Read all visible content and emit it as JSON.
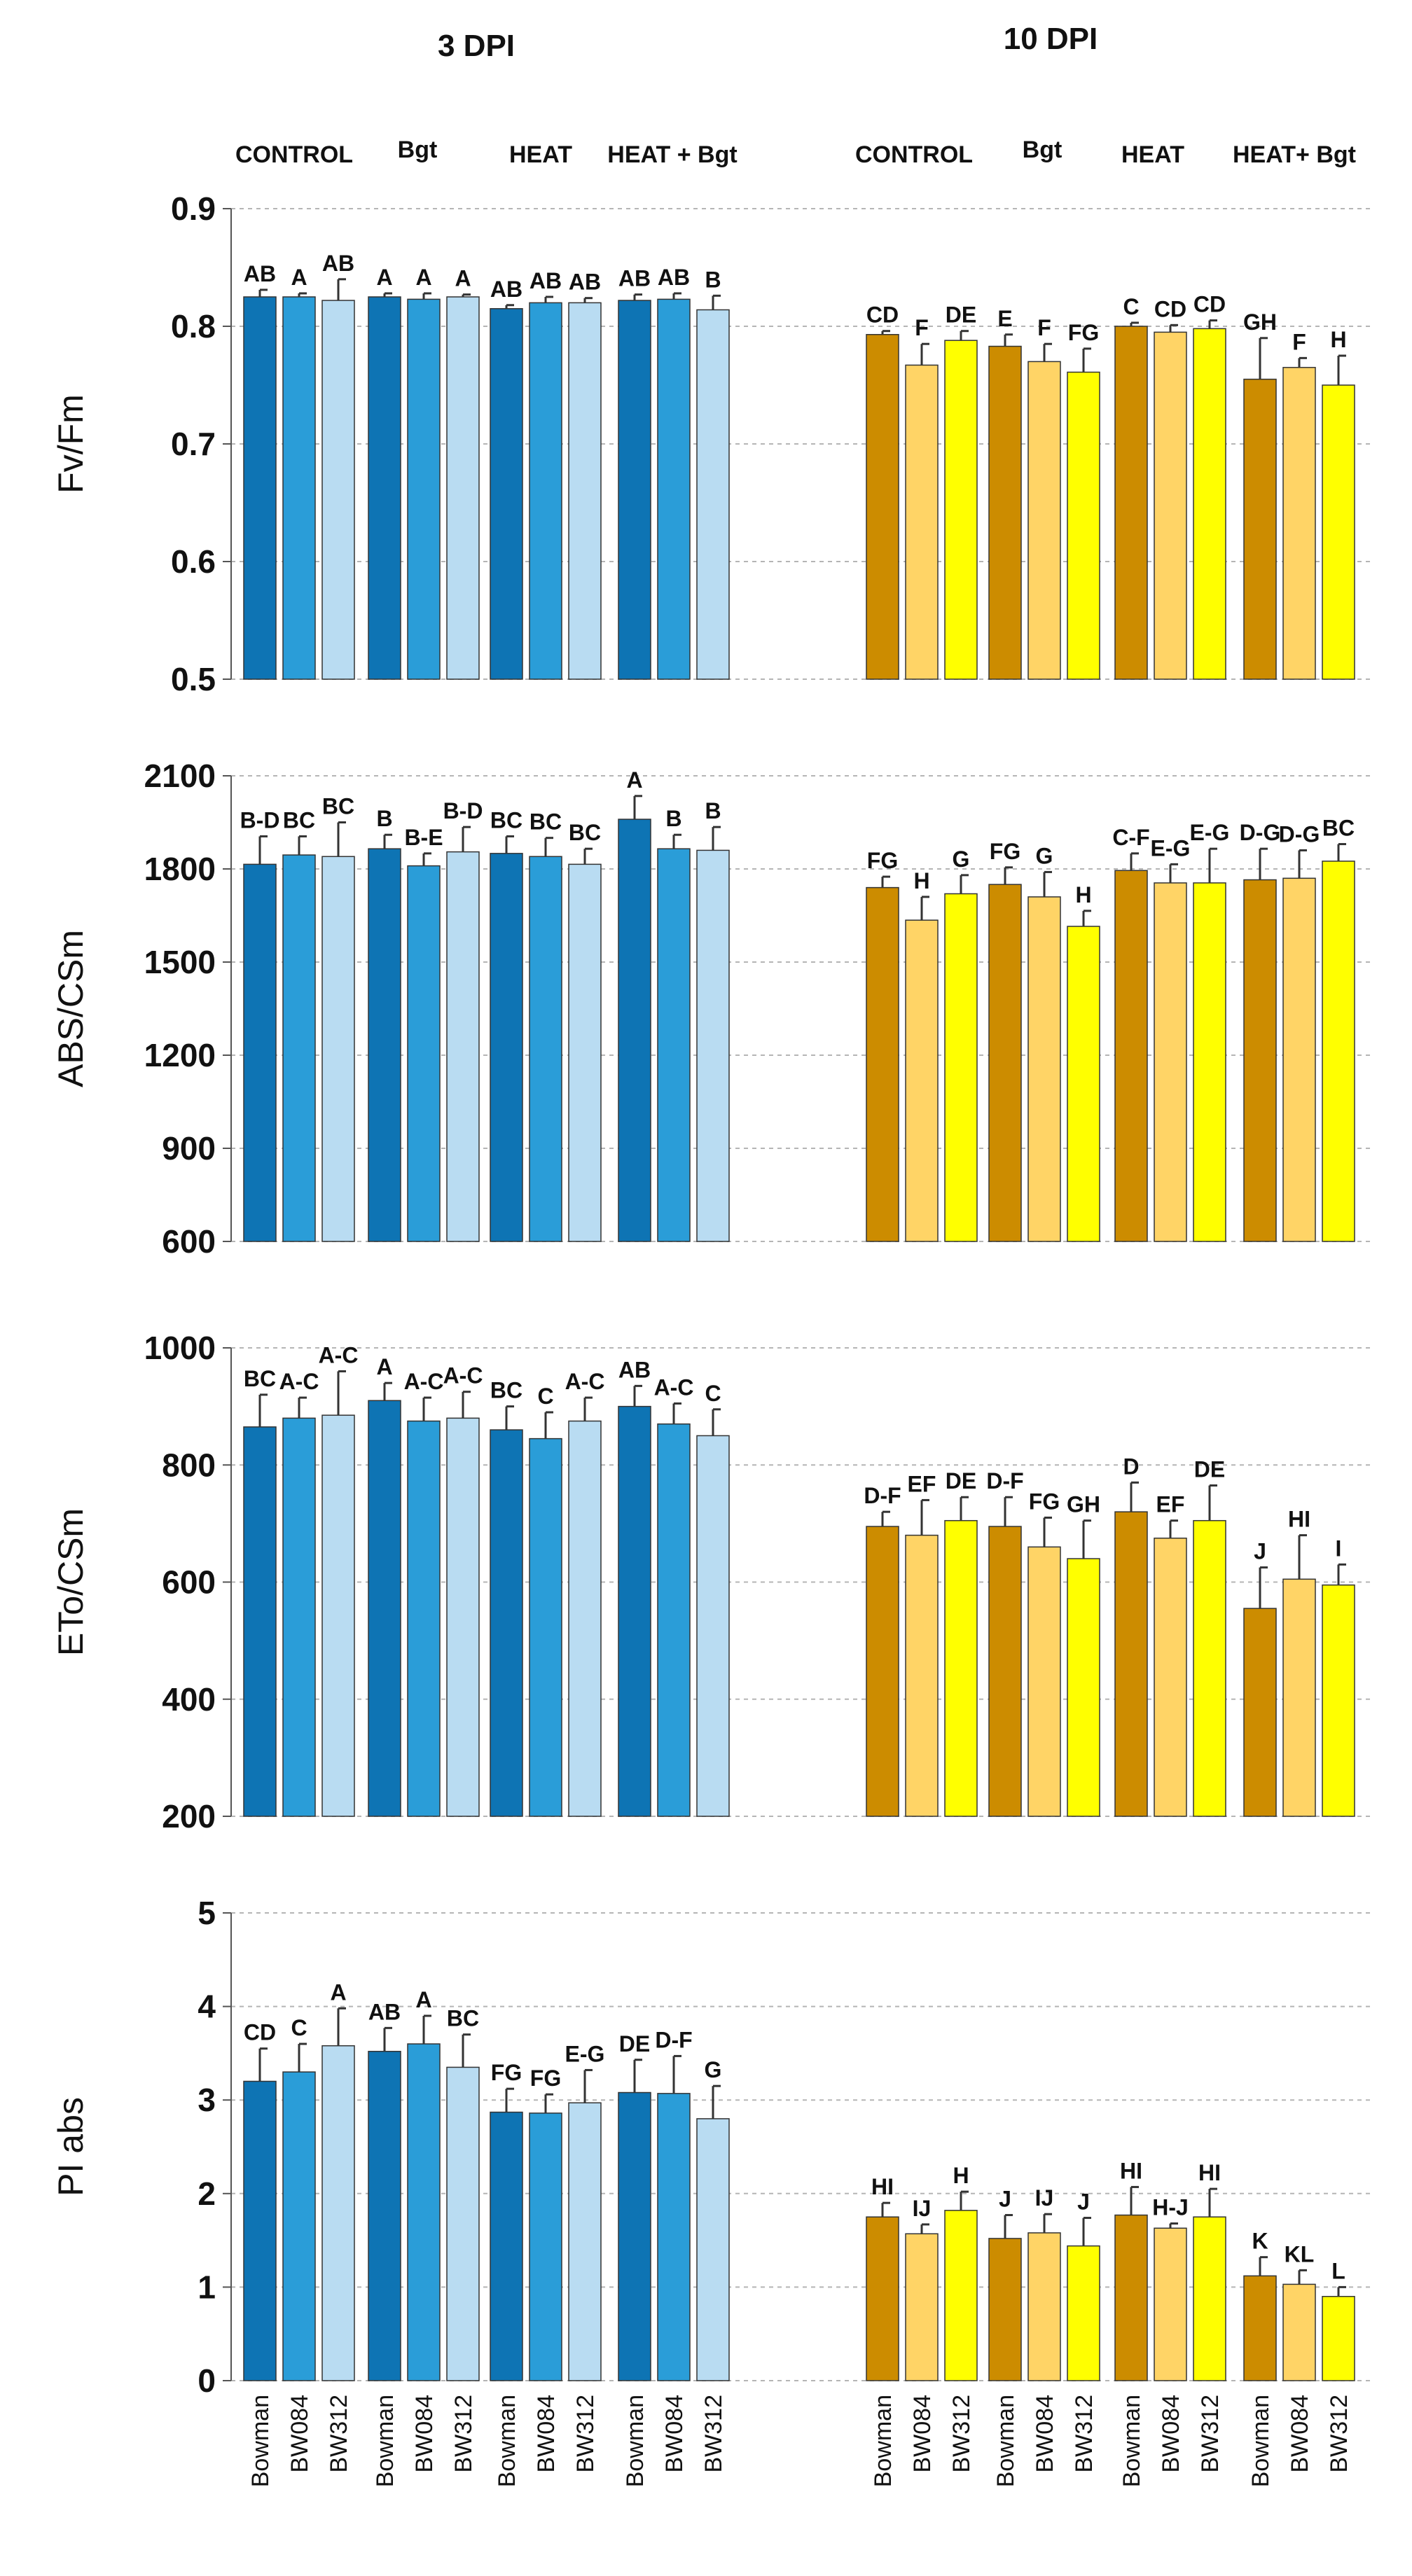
{
  "figure": {
    "headers": [
      "3 DPI",
      "10 DPI"
    ],
    "treatments": [
      "CONTROL",
      "Bgt",
      "HEAT",
      "HEAT + Bgt"
    ],
    "treatments_10dpi": [
      "CONTROL",
      "Bgt",
      "HEAT",
      "HEAT+ Bgt"
    ],
    "cultivars": [
      "Bowman",
      "BW084",
      "BW312"
    ],
    "colors_3dpi": [
      "#0e74b4",
      "#2a9dd8",
      "#b9dcf2"
    ],
    "colors_10dpi": [
      "#cc8c00",
      "#ffd466",
      "#ffff00"
    ]
  },
  "chart_data": [
    {
      "type": "bar",
      "ylabel": "Fv/Fm",
      "ylim": [
        0.5,
        0.9
      ],
      "yticks": [
        "0.9",
        "0.8",
        "0.7",
        "0.6",
        "0.5"
      ],
      "ytick_values": [
        0.9,
        0.8,
        0.7,
        0.6,
        0.5
      ],
      "dpi3": {
        "values": [
          [
            0.825,
            0.825,
            0.822
          ],
          [
            0.825,
            0.823,
            0.825
          ],
          [
            0.815,
            0.82,
            0.82
          ],
          [
            0.822,
            0.823,
            0.814
          ]
        ],
        "errors": [
          [
            0.006,
            0.003,
            0.018
          ],
          [
            0.003,
            0.005,
            0.002
          ],
          [
            0.003,
            0.005,
            0.004
          ],
          [
            0.005,
            0.005,
            0.012
          ]
        ],
        "labels": [
          [
            "AB",
            "A",
            "AB"
          ],
          [
            "A",
            "A",
            "A"
          ],
          [
            "AB",
            "AB",
            "AB"
          ],
          [
            "AB",
            "AB",
            "B"
          ]
        ]
      },
      "dpi10": {
        "values": [
          [
            0.793,
            0.767,
            0.788
          ],
          [
            0.783,
            0.77,
            0.761
          ],
          [
            0.8,
            0.795,
            0.798
          ],
          [
            0.755,
            0.765,
            0.75
          ]
        ],
        "errors": [
          [
            0.003,
            0.018,
            0.008
          ],
          [
            0.01,
            0.015,
            0.02
          ],
          [
            0.003,
            0.006,
            0.007
          ],
          [
            0.035,
            0.008,
            0.025
          ]
        ],
        "labels": [
          [
            "CD",
            "F",
            "DE"
          ],
          [
            "E",
            "F",
            "FG"
          ],
          [
            "C",
            "CD",
            "CD"
          ],
          [
            "GH",
            "F",
            "H"
          ]
        ]
      }
    },
    {
      "type": "bar",
      "ylabel": "ABS/CSm",
      "ylim": [
        600,
        2100
      ],
      "yticks": [
        "2100",
        "1800",
        "1500",
        "1200",
        "900",
        "600"
      ],
      "ytick_values": [
        2100,
        1800,
        1500,
        1200,
        900,
        600
      ],
      "dpi3": {
        "values": [
          [
            1815,
            1845,
            1840
          ],
          [
            1865,
            1810,
            1855
          ],
          [
            1850,
            1840,
            1815
          ],
          [
            1960,
            1865,
            1860
          ]
        ],
        "errors": [
          [
            90,
            60,
            110
          ],
          [
            45,
            40,
            80
          ],
          [
            55,
            60,
            50
          ],
          [
            75,
            45,
            75
          ]
        ],
        "labels": [
          [
            "B-D",
            "BC",
            "BC"
          ],
          [
            "B",
            "B-E",
            "B-D"
          ],
          [
            "BC",
            "BC",
            "BC"
          ],
          [
            "A",
            "B",
            "B"
          ]
        ]
      },
      "dpi10": {
        "values": [
          [
            1740,
            1635,
            1720
          ],
          [
            1750,
            1710,
            1615
          ],
          [
            1795,
            1755,
            1755
          ],
          [
            1765,
            1770,
            1825
          ]
        ],
        "errors": [
          [
            35,
            75,
            60
          ],
          [
            55,
            80,
            50
          ],
          [
            55,
            60,
            110
          ],
          [
            100,
            90,
            55
          ]
        ],
        "labels": [
          [
            "FG",
            "H",
            "G"
          ],
          [
            "FG",
            "G",
            "H"
          ],
          [
            "C-F",
            "E-G",
            "E-G"
          ],
          [
            "D-G",
            "D-G",
            "BC"
          ]
        ]
      }
    },
    {
      "type": "bar",
      "ylabel": "ETo/CSm",
      "ylim": [
        200,
        1000
      ],
      "yticks": [
        "1000",
        "800",
        "600",
        "400",
        "200"
      ],
      "ytick_values": [
        1000,
        800,
        600,
        400,
        200
      ],
      "dpi3": {
        "values": [
          [
            865,
            880,
            885
          ],
          [
            910,
            875,
            880
          ],
          [
            860,
            845,
            875
          ],
          [
            900,
            870,
            850
          ]
        ],
        "errors": [
          [
            55,
            35,
            75
          ],
          [
            30,
            40,
            45
          ],
          [
            40,
            45,
            40
          ],
          [
            35,
            35,
            45
          ]
        ],
        "labels": [
          [
            "BC",
            "A-C",
            "A-C"
          ],
          [
            "A",
            "A-C",
            "A-C"
          ],
          [
            "BC",
            "C",
            "A-C"
          ],
          [
            "AB",
            "A-C",
            "C"
          ]
        ]
      },
      "dpi10": {
        "values": [
          [
            695,
            680,
            705
          ],
          [
            695,
            660,
            640
          ],
          [
            720,
            675,
            705
          ],
          [
            555,
            605,
            595
          ]
        ],
        "errors": [
          [
            25,
            60,
            40
          ],
          [
            50,
            50,
            65
          ],
          [
            50,
            30,
            60
          ],
          [
            70,
            75,
            35
          ]
        ],
        "labels": [
          [
            "D-F",
            "EF",
            "DE"
          ],
          [
            "D-F",
            "FG",
            "GH"
          ],
          [
            "D",
            "EF",
            "DE"
          ],
          [
            "J",
            "HI",
            "I"
          ]
        ]
      }
    },
    {
      "type": "bar",
      "ylabel": "PI abs",
      "ylim": [
        0,
        5
      ],
      "yticks": [
        "5",
        "4",
        "3",
        "2",
        "1",
        "0"
      ],
      "ytick_values": [
        5,
        4,
        3,
        2,
        1,
        0
      ],
      "dpi3": {
        "values": [
          [
            3.2,
            3.3,
            3.58
          ],
          [
            3.52,
            3.6,
            3.35
          ],
          [
            2.87,
            2.86,
            2.97
          ],
          [
            3.08,
            3.07,
            2.8
          ]
        ],
        "errors": [
          [
            0.35,
            0.3,
            0.4
          ],
          [
            0.25,
            0.3,
            0.35
          ],
          [
            0.25,
            0.2,
            0.35
          ],
          [
            0.35,
            0.4,
            0.35
          ]
        ],
        "labels": [
          [
            "CD",
            "C",
            "A"
          ],
          [
            "AB",
            "A",
            "BC"
          ],
          [
            "FG",
            "FG",
            "E-G"
          ],
          [
            "DE",
            "D-F",
            "G"
          ]
        ]
      },
      "dpi10": {
        "values": [
          [
            1.75,
            1.57,
            1.82
          ],
          [
            1.52,
            1.58,
            1.44
          ],
          [
            1.77,
            1.63,
            1.75
          ],
          [
            1.12,
            1.03,
            0.9
          ]
        ],
        "errors": [
          [
            0.15,
            0.1,
            0.2
          ],
          [
            0.25,
            0.2,
            0.3
          ],
          [
            0.3,
            0.05,
            0.3
          ],
          [
            0.2,
            0.15,
            0.1
          ]
        ],
        "labels": [
          [
            "HI",
            "IJ",
            "H"
          ],
          [
            "J",
            "IJ",
            "J"
          ],
          [
            "HI",
            "H-J",
            "HI"
          ],
          [
            "K",
            "KL",
            "L"
          ]
        ]
      }
    }
  ]
}
